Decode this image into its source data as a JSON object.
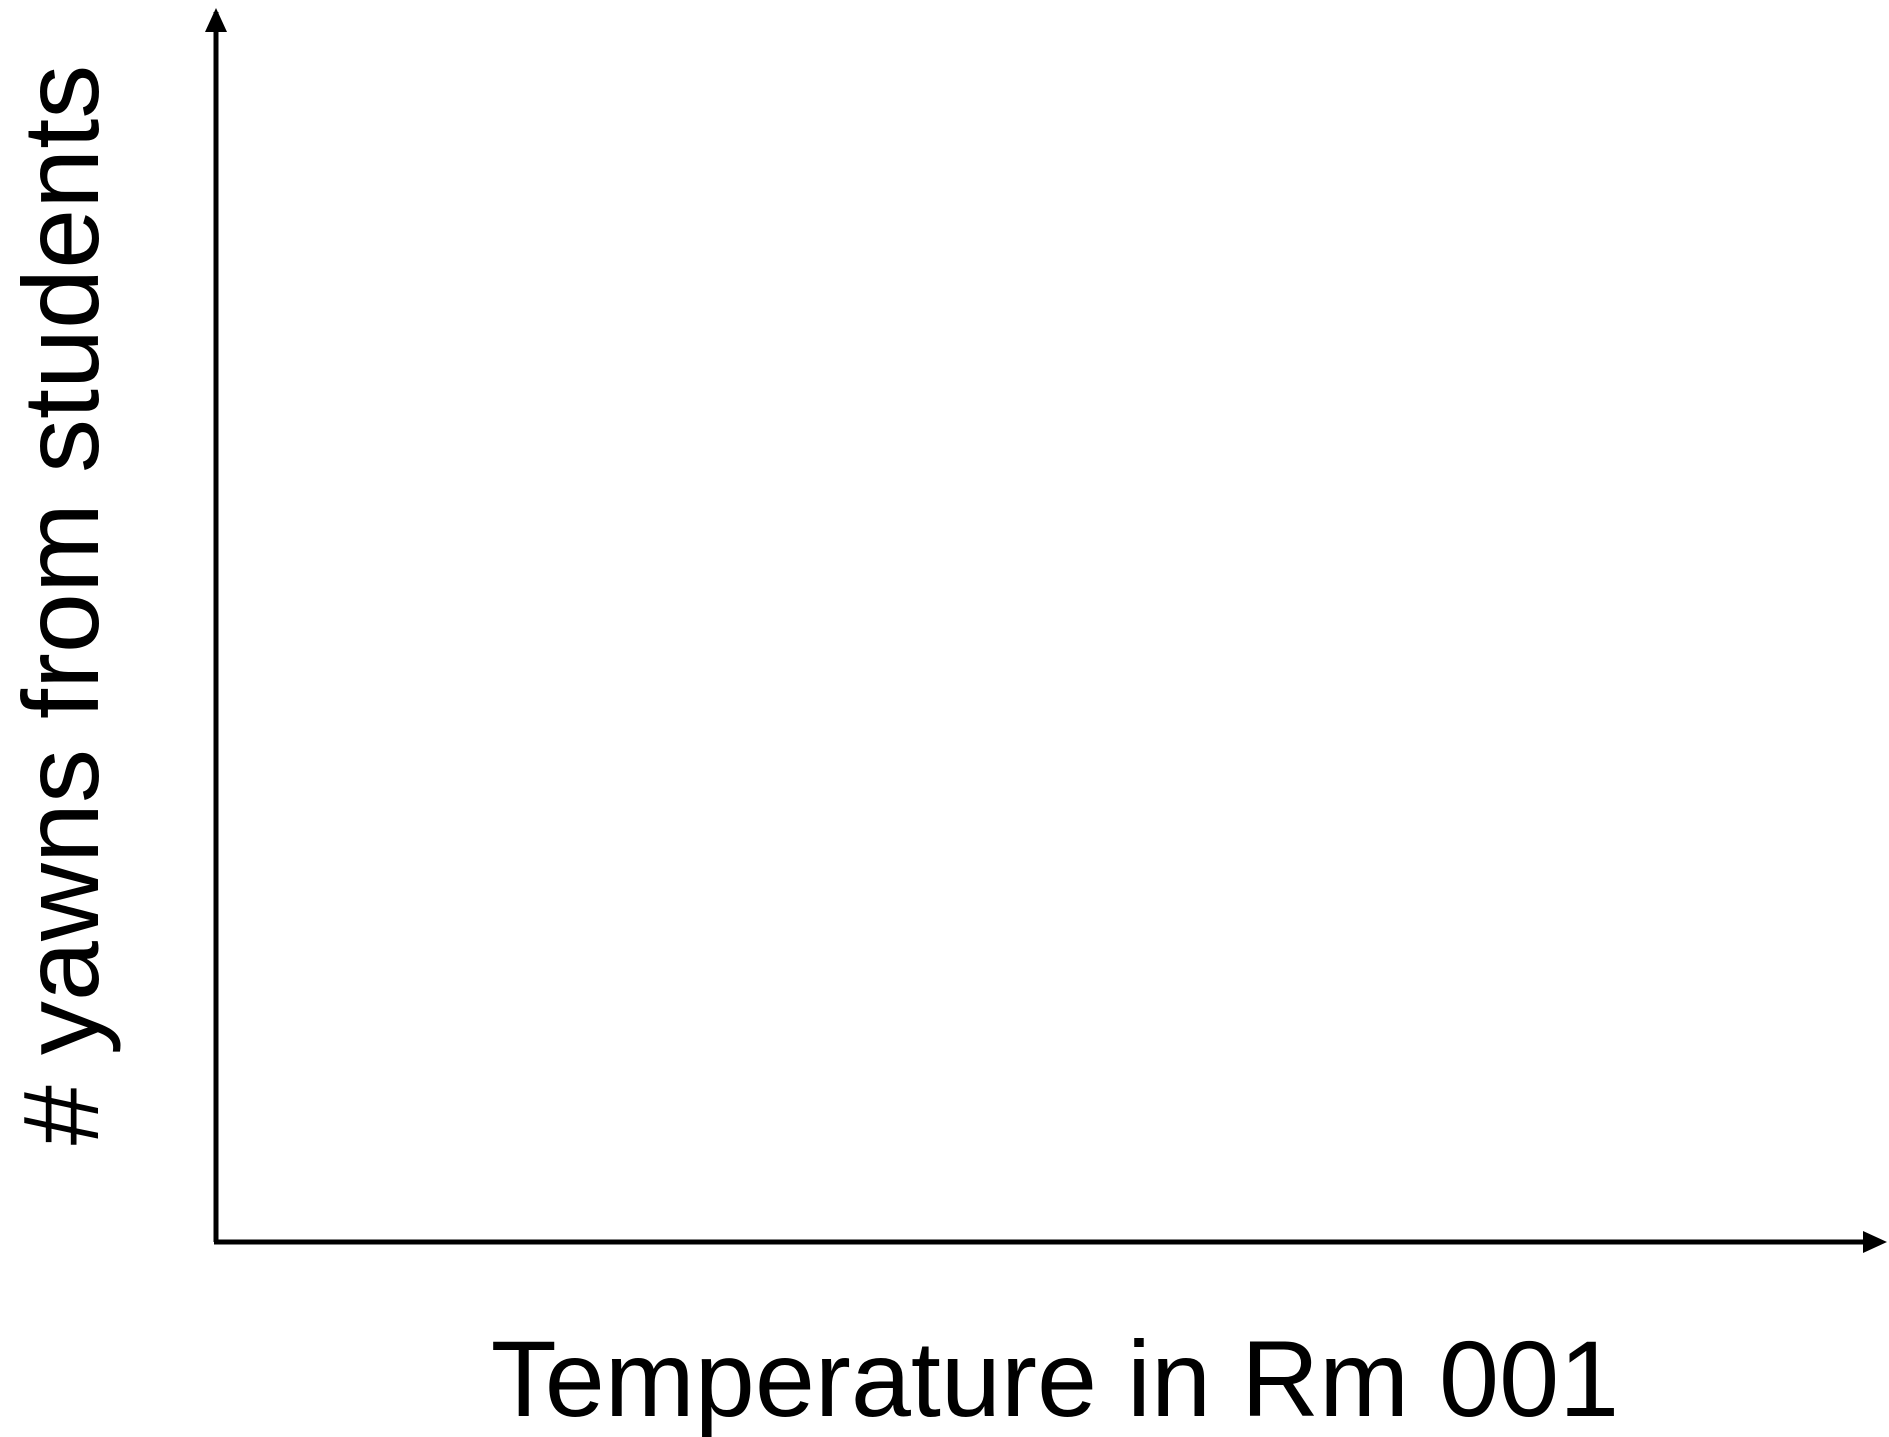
{
  "chart_data": {
    "type": "line",
    "title": "",
    "xlabel": "Temperature in Rm 001",
    "ylabel": "# yawns from students",
    "series": [],
    "grid": false,
    "legend": "none",
    "axis_color": "#000000"
  }
}
